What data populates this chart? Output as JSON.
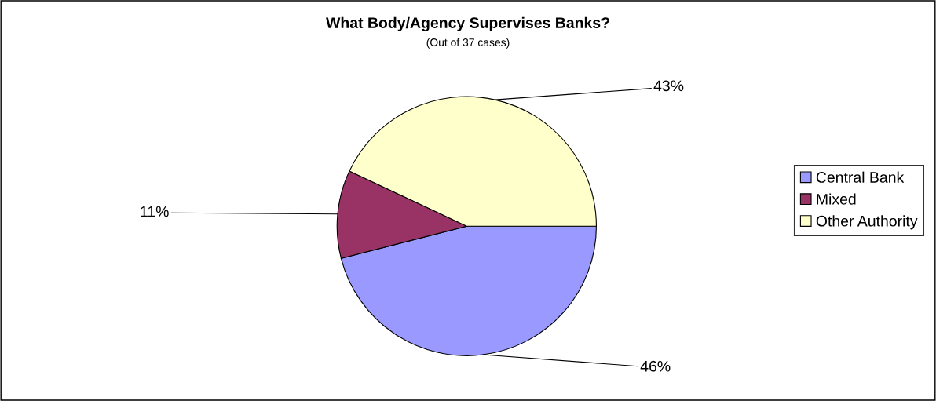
{
  "chart_data": {
    "type": "pie",
    "title": "What Body/Agency Supervises Banks?",
    "subtitle": "(Out of 37 cases)",
    "categories": [
      "Central Bank",
      "Mixed",
      "Other Authority"
    ],
    "values": [
      46,
      11,
      43
    ],
    "colors": [
      "#9999ff",
      "#993366",
      "#ffffcc"
    ],
    "value_labels": [
      "46%",
      "11%",
      "43%"
    ],
    "legend": "right"
  }
}
